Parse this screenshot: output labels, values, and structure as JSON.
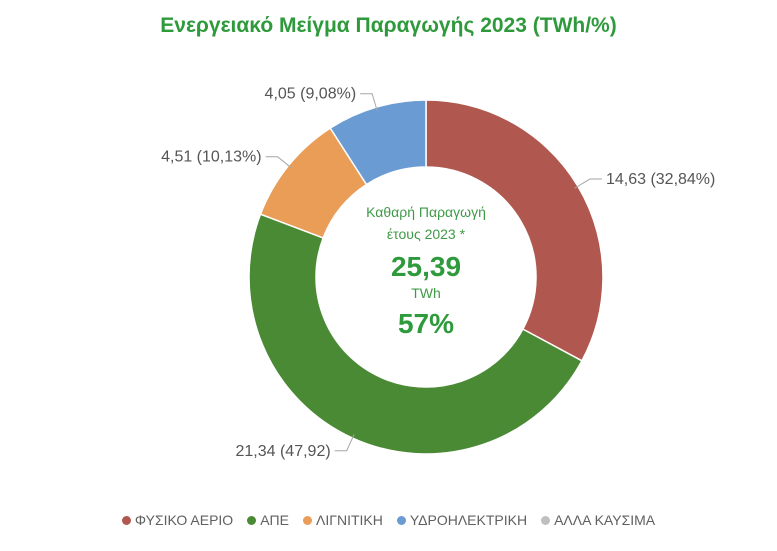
{
  "chart_data": {
    "type": "pie",
    "title": "Ενεργειακό Μείγμα Παραγωγής 2023 (TWh/%)",
    "categories": [
      "ΦΥΣΙΚΟ ΑΕΡΙΟ",
      "ΑΠΕ",
      "ΛΙΓΝΙΤΙΚΗ",
      "ΥΔΡΟΗΛΕΚΤΡΙΚΗ",
      "ΑΛΛΑ ΚΑΥΣΙΜΑ"
    ],
    "values": [
      14.63,
      21.34,
      4.51,
      4.05,
      0
    ],
    "labels": [
      "14,63 (32,84%)",
      "21,34 (47,92)",
      "4,51 (10,13%)",
      "4,05 (9,08%)",
      ""
    ],
    "colors": [
      "#b0584f",
      "#4a8a35",
      "#e99d57",
      "#6a9bd2",
      "#bfbfbf"
    ],
    "legend_position": "bottom",
    "center": {
      "line1": "Καθαρή Παραγωγή",
      "line2": "έτους 2023 *",
      "value": "25,39",
      "unit": "TWh",
      "percent": "57%"
    }
  }
}
